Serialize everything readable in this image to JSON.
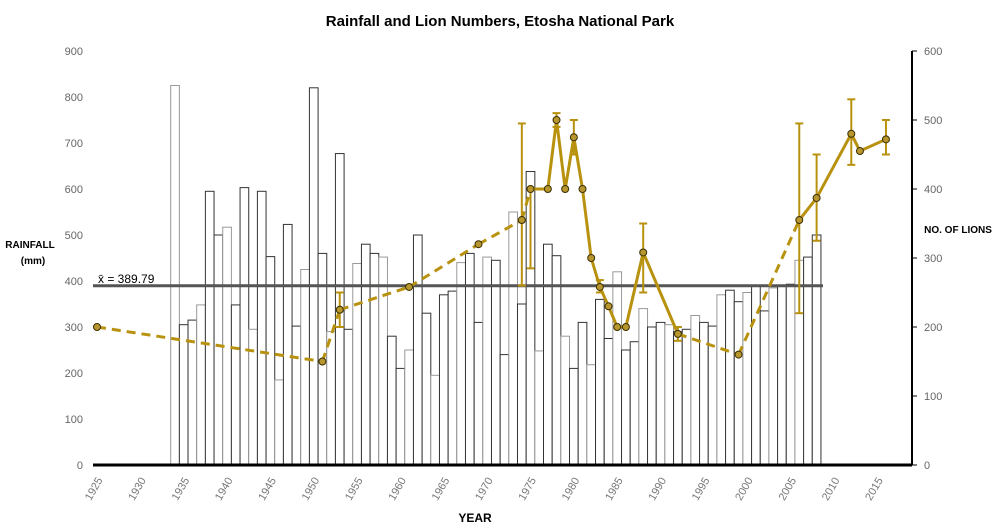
{
  "chart_data": {
    "type": "bar+line",
    "title": "Rainfall and Lion Numbers, Etosha National Park",
    "xlabel": "YEAR",
    "ylabel_left": "RAINFALL",
    "ylabel_left_unit": "(mm)",
    "ylabel_right": "NO. OF LIONS",
    "ylim_left": [
      0,
      900
    ],
    "ylim_right": [
      0,
      600
    ],
    "xlim": [
      1925,
      2017
    ],
    "x_ticks": [
      1925,
      1930,
      1935,
      1940,
      1945,
      1950,
      1955,
      1960,
      1965,
      1970,
      1975,
      1980,
      1985,
      1990,
      1995,
      2000,
      2005,
      2010,
      2015
    ],
    "y_left_ticks": [
      0,
      100,
      200,
      300,
      400,
      500,
      600,
      700,
      800,
      900
    ],
    "y_right_ticks": [
      0,
      100,
      200,
      300,
      400,
      500,
      600
    ],
    "grid": false,
    "mean_label": "x̄ = 389.79",
    "mean_value": 389.79,
    "colors": {
      "lion": "#B8920F",
      "lion_marker": "#B8962E",
      "mean": "#555555",
      "bar_edge": "#333333"
    },
    "rainfall": {
      "years_start": 1933,
      "values": [
        825,
        305,
        315,
        348,
        595,
        500,
        517,
        348,
        603,
        295,
        595,
        453,
        185,
        523,
        302,
        425,
        820,
        460,
        290,
        677,
        295,
        438,
        480,
        460,
        452,
        280,
        210,
        250,
        500,
        330,
        195,
        370,
        378,
        440,
        460,
        310,
        452,
        445,
        240,
        550,
        350,
        638,
        248,
        480,
        455,
        280,
        210,
        310,
        218,
        360,
        275,
        420,
        250,
        268,
        340,
        300,
        310,
        305,
        290,
        295,
        325,
        310,
        302,
        370,
        380,
        355,
        375,
        390,
        335,
        385,
        390,
        393,
        445,
        452,
        500
      ]
    },
    "lions": {
      "points": [
        {
          "year": 1925,
          "value": 200
        },
        {
          "year": 1951,
          "value": 150
        },
        {
          "year": 1953,
          "value": 225,
          "err": [
            200,
            250
          ]
        },
        {
          "year": 1961,
          "value": 258
        },
        {
          "year": 1969,
          "value": 320
        },
        {
          "year": 1974,
          "value": 355,
          "err": [
            260,
            495
          ]
        },
        {
          "year": 1975,
          "value": 400,
          "err": [
            285,
            400
          ]
        },
        {
          "year": 1977,
          "value": 400
        },
        {
          "year": 1978,
          "value": 500,
          "err": [
            490,
            510
          ]
        },
        {
          "year": 1979,
          "value": 400
        },
        {
          "year": 1980,
          "value": 475,
          "err": [
            450,
            500
          ]
        },
        {
          "year": 1981,
          "value": 400
        },
        {
          "year": 1982,
          "value": 300
        },
        {
          "year": 1983,
          "value": 258,
          "err": [
            250,
            268
          ]
        },
        {
          "year": 1984,
          "value": 230
        },
        {
          "year": 1985,
          "value": 200
        },
        {
          "year": 1986,
          "value": 200
        },
        {
          "year": 1988,
          "value": 308,
          "err": [
            250,
            350
          ]
        },
        {
          "year": 1992,
          "value": 190,
          "err": [
            180,
            200
          ]
        },
        {
          "year": 1999,
          "value": 160
        },
        {
          "year": 2006,
          "value": 355,
          "err": [
            220,
            495
          ]
        },
        {
          "year": 2008,
          "value": 387,
          "err": [
            325,
            450
          ]
        },
        {
          "year": 2012,
          "value": 480,
          "err": [
            435,
            530
          ]
        },
        {
          "year": 2013,
          "value": 455
        },
        {
          "year": 2016,
          "value": 472,
          "err": [
            450,
            500
          ]
        }
      ],
      "dashed_segments": [
        [
          1925,
          1975
        ],
        [
          1992,
          2006
        ]
      ]
    }
  }
}
